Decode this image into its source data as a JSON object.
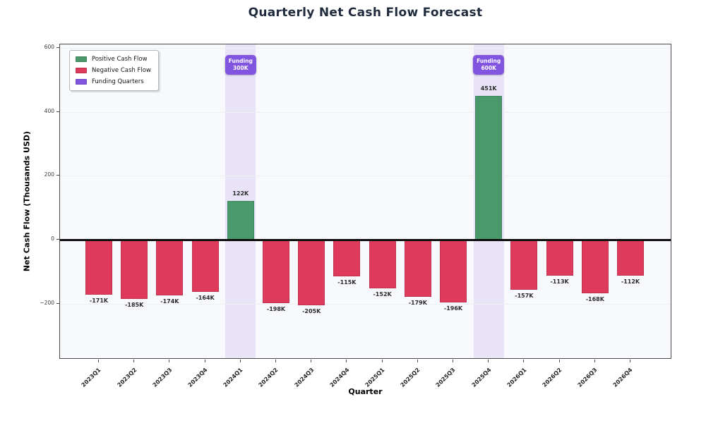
{
  "title": "Quarterly Net Cash Flow Forecast",
  "chart_data": {
    "type": "bar",
    "title": "Quarterly Net Cash Flow Forecast",
    "xlabel": "Quarter",
    "ylabel": "Net Cash Flow (Thousands USD)",
    "categories": [
      "2023Q1",
      "2023Q2",
      "2023Q3",
      "2023Q4",
      "2024Q1",
      "2024Q2",
      "2024Q3",
      "2024Q4",
      "2025Q1",
      "2025Q2",
      "2025Q3",
      "2025Q4",
      "2026Q1",
      "2026Q2",
      "2026Q3",
      "2026Q4"
    ],
    "values": [
      -171,
      -185,
      -174,
      -164,
      122,
      -198,
      -205,
      -115,
      -152,
      -179,
      -196,
      451,
      -157,
      -113,
      -168,
      -112
    ],
    "bar_labels": [
      "-171K",
      "-185K",
      "-174K",
      "-164K",
      "122K",
      "-198K",
      "-205K",
      "-115K",
      "-152K",
      "-179K",
      "-196K",
      "451K",
      "-157K",
      "-113K",
      "-168K",
      "-112K"
    ],
    "units": "Thousands USD",
    "yticks": [
      600,
      400,
      200,
      0,
      -200
    ],
    "ytick_labels": [
      "600",
      "400",
      "200",
      "0",
      "−200"
    ],
    "ylim": [
      -375,
      611
    ],
    "grid": "horizontal-faint",
    "legend_position": "upper-left-inside",
    "legend": [
      {
        "label": "Positive Cash Flow",
        "color": "#4a996c"
      },
      {
        "label": "Negative Cash Flow",
        "color": "#dd3a5c"
      },
      {
        "label": "Funding Quarters",
        "color": "#8255e1"
      }
    ],
    "funding_events": [
      {
        "quarter": "2024Q1",
        "index": 4,
        "badge_lines": [
          "Funding",
          "300K"
        ],
        "amount": 300
      },
      {
        "quarter": "2025Q4",
        "index": 11,
        "badge_lines": [
          "Funding",
          "600K"
        ],
        "amount": 600
      }
    ],
    "colors": {
      "positive_bar": "#4a996c",
      "negative_bar": "#dd3a5c",
      "funding_badge": "#8255e1",
      "funding_span": "#e9e3f8",
      "plot_background": "#f8f9fc",
      "figure_background": "#ffffff",
      "gridline": "#edeff3",
      "zero_line": "#0d0d0d",
      "title_text": "#1f2b3d"
    }
  }
}
